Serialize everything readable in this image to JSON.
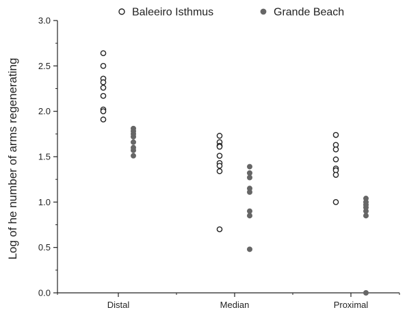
{
  "chart_data": {
    "type": "scatter",
    "title": "",
    "xlabel": "",
    "ylabel": "Log of he number of arms regenerating",
    "categories": [
      "Distal",
      "Median",
      "Proximal"
    ],
    "ylim": [
      0,
      3.0
    ],
    "yticks": [
      "0.0",
      "0.5",
      "1.0",
      "1.5",
      "2.0",
      "2.5",
      "3.0"
    ],
    "grid": false,
    "legend_position": "top",
    "series": [
      {
        "name": "Baleeiro Isthmus",
        "marker": "open-circle",
        "color": "#222222",
        "points": [
          {
            "category": "Distal",
            "values": [
              2.64,
              2.5,
              2.36,
              2.32,
              2.26,
              2.17,
              2.02,
              2.0,
              1.91
            ]
          },
          {
            "category": "Median",
            "values": [
              1.73,
              1.66,
              1.62,
              1.61,
              1.51,
              1.43,
              1.4,
              1.34,
              0.7
            ]
          },
          {
            "category": "Proximal",
            "values": [
              1.74,
              1.63,
              1.58,
              1.47,
              1.37,
              1.35,
              1.3,
              1.0
            ]
          }
        ]
      },
      {
        "name": "Grande Beach",
        "marker": "filled-circle",
        "color": "#666666",
        "points": [
          {
            "category": "Distal",
            "values": [
              1.81,
              1.78,
              1.75,
              1.72,
              1.66,
              1.6,
              1.57,
              1.51
            ]
          },
          {
            "category": "Median",
            "values": [
              1.39,
              1.32,
              1.27,
              1.15,
              1.11,
              0.9,
              0.85,
              0.48
            ]
          },
          {
            "category": "Proximal",
            "values": [
              1.04,
              1.0,
              0.97,
              0.94,
              0.9,
              0.85,
              0.0
            ]
          }
        ]
      }
    ]
  }
}
